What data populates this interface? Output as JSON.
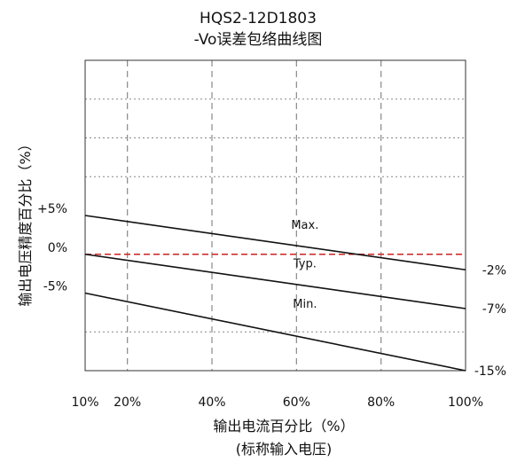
{
  "chart_data": {
    "type": "line",
    "title": "HQS2-12D1803",
    "subtitle": "-Vo误差包络曲线图",
    "xlabel": "输出电流百分比（%）",
    "xlabel_sub": "(标称输入电压)",
    "ylabel": "输出电压精度百分比（%）",
    "x_ticks": [
      {
        "value": 10,
        "label": "10%"
      },
      {
        "value": 20,
        "label": "20%"
      },
      {
        "value": 40,
        "label": "40%"
      },
      {
        "value": 60,
        "label": "60%"
      },
      {
        "value": 80,
        "label": "80%"
      },
      {
        "value": 100,
        "label": "100%"
      }
    ],
    "y_ticks_left": [
      {
        "value": 5,
        "label": "+5%"
      },
      {
        "value": 0,
        "label": "0%"
      },
      {
        "value": -5,
        "label": "-5%"
      }
    ],
    "y_ticks_right": [
      {
        "value": -2,
        "label": "-2%"
      },
      {
        "value": -7,
        "label": "-7%"
      },
      {
        "value": -15,
        "label": "-15%"
      }
    ],
    "xlim": [
      10,
      100
    ],
    "ylim": [
      -15,
      25
    ],
    "vertical_grid": [
      20,
      40,
      60,
      80
    ],
    "horizontal_grid": [
      20,
      15,
      10,
      -10
    ],
    "reference_line": {
      "y": 0,
      "color": "#cc2222",
      "style": "dashed"
    },
    "series": [
      {
        "name": "Max.",
        "x": [
          10,
          100
        ],
        "y": [
          5,
          -2
        ],
        "label_x": 62,
        "label_y": 3.3
      },
      {
        "name": "Typ.",
        "x": [
          10,
          100
        ],
        "y": [
          0,
          -7
        ],
        "label_x": 62,
        "label_y": -1.7
      },
      {
        "name": "Min.",
        "x": [
          10,
          100
        ],
        "y": [
          -5,
          -15
        ],
        "label_x": 62,
        "label_y": -6.9
      }
    ],
    "grid": true,
    "legend": "none",
    "colors": {
      "series_line": "#111111",
      "grid": "#888888",
      "reference": "#cc2222",
      "frame": "#333333"
    }
  }
}
